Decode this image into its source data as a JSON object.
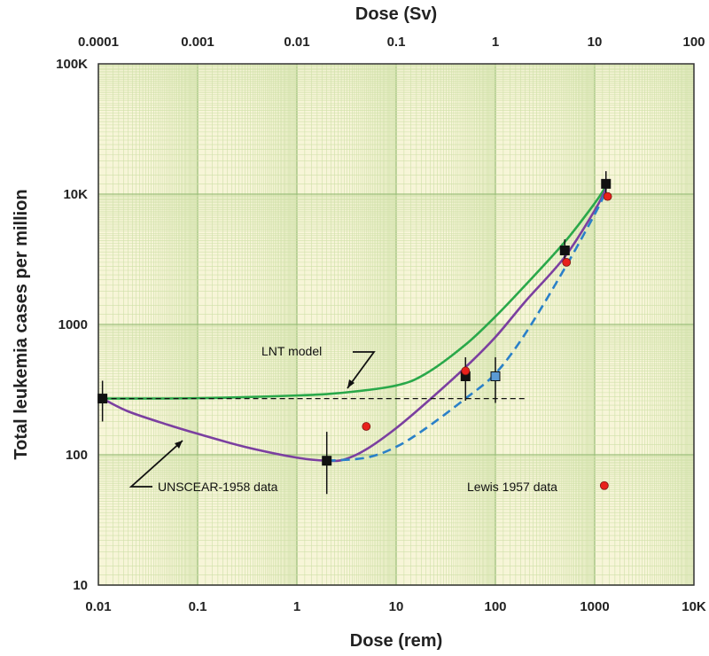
{
  "chart_data": {
    "type": "line",
    "xlabel": "Dose (rem)",
    "x2label": "Dose (Sv)",
    "ylabel": "Total leukemia cases per million",
    "xscale": "log",
    "yscale": "log",
    "xlim": [
      0.01,
      10000
    ],
    "x2lim": [
      0.0001,
      100
    ],
    "ylim": [
      10,
      100000
    ],
    "grid": true,
    "x_ticks": [
      {
        "v": 0.01,
        "label": "0.01"
      },
      {
        "v": 0.1,
        "label": "0.1"
      },
      {
        "v": 1,
        "label": "1"
      },
      {
        "v": 10,
        "label": "10"
      },
      {
        "v": 100,
        "label": "100"
      },
      {
        "v": 1000,
        "label": "1000"
      },
      {
        "v": 10000,
        "label": "10K"
      }
    ],
    "x2_ticks": [
      {
        "v": 0.0001,
        "label": "0.0001"
      },
      {
        "v": 0.001,
        "label": "0.001"
      },
      {
        "v": 0.01,
        "label": "0.01"
      },
      {
        "v": 0.1,
        "label": "0.1"
      },
      {
        "v": 1,
        "label": "1"
      },
      {
        "v": 10,
        "label": "10"
      },
      {
        "v": 100,
        "label": "100"
      }
    ],
    "y_ticks": [
      {
        "v": 10,
        "label": "10"
      },
      {
        "v": 100,
        "label": "100"
      },
      {
        "v": 1000,
        "label": "1000"
      },
      {
        "v": 10000,
        "label": "10K"
      },
      {
        "v": 100000,
        "label": "100K"
      }
    ],
    "series": [
      {
        "color": "#2aa84a",
        "dash": "solid",
        "x": [
          0.011,
          0.1,
          1,
          3,
          10,
          20,
          50,
          100,
          200,
          500,
          1000,
          1300
        ],
        "y": [
          270,
          272,
          285,
          300,
          340,
          420,
          700,
          1150,
          2000,
          4300,
          8500,
          11500
        ]
      },
      {
        "color": "#7b3fa0",
        "dash": "solid",
        "x": [
          0.011,
          0.02,
          0.05,
          0.1,
          0.3,
          1,
          2,
          3,
          5,
          10,
          20,
          50,
          100,
          200,
          500,
          1000,
          1300
        ],
        "y": [
          270,
          215,
          170,
          145,
          115,
          95,
          90,
          92,
          110,
          160,
          250,
          470,
          800,
          1500,
          3300,
          7500,
          11000
        ]
      },
      {
        "color": "#2a80c8",
        "dash": "dashed",
        "x": [
          2,
          5,
          10,
          20,
          50,
          100,
          200,
          500,
          1000,
          1300
        ],
        "y": [
          90,
          95,
          115,
          160,
          270,
          420,
          850,
          2700,
          7000,
          10500
        ]
      },
      {
        "color": "#111111",
        "dash": "fine-dashed",
        "x": [
          0.011,
          200
        ],
        "y": [
          270,
          270
        ]
      }
    ],
    "points": {
      "black_squares": [
        {
          "x": 0.011,
          "y": 270,
          "err": [
            180,
            370
          ]
        },
        {
          "x": 2,
          "y": 90,
          "err": [
            50,
            150
          ]
        },
        {
          "x": 50,
          "y": 400,
          "err": [
            260,
            560
          ]
        },
        {
          "x": 500,
          "y": 3700,
          "err": [
            3000,
            4500
          ]
        },
        {
          "x": 1300,
          "y": 12000,
          "err": [
            9500,
            15000
          ]
        }
      ],
      "blue_squares": [
        {
          "x": 100,
          "y": 400,
          "err": [
            250,
            560
          ]
        }
      ],
      "red_circles": [
        {
          "x": 5,
          "y": 165
        },
        {
          "x": 50,
          "y": 440
        },
        {
          "x": 520,
          "y": 3000
        },
        {
          "x": 1350,
          "y": 9600
        },
        {
          "x": 1250,
          "y": 58
        }
      ]
    },
    "annotations": [
      {
        "id": "lnt",
        "text": "LNT model"
      },
      {
        "id": "unscear",
        "text": "UNSCEAR-1958 data"
      },
      {
        "id": "lewis",
        "text": "Lewis 1957 data"
      }
    ]
  }
}
